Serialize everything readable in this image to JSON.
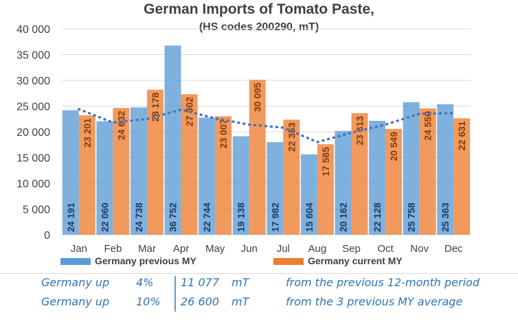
{
  "chart_data": {
    "type": "bar",
    "title": "German Imports of Tomato Paste,",
    "subtitle": "(HS codes 200290, mT)",
    "categories": [
      "Jan",
      "Feb",
      "Mar",
      "Apr",
      "May",
      "Jun",
      "Jul",
      "Aug",
      "Sep",
      "Oct",
      "Nov",
      "Dec"
    ],
    "ylim": [
      0,
      40000
    ],
    "yticks": [
      "0",
      "5 000",
      "10 000",
      "15 000",
      "20 000",
      "25 000",
      "30 000",
      "35 000",
      "40 000"
    ],
    "ytick_values": [
      0,
      5000,
      10000,
      15000,
      20000,
      25000,
      30000,
      35000,
      40000
    ],
    "grid": true,
    "legend_position": "bottom",
    "series": [
      {
        "name": "Germany previous MY",
        "color": "#5b9bd5",
        "values": [
          24191,
          22060,
          24738,
          36752,
          22744,
          19138,
          17982,
          15604,
          20162,
          22128,
          25758,
          25363
        ],
        "labels": [
          "24 191",
          "22 060",
          "24 738",
          "36 752",
          "22 744",
          "19 138",
          "17 982",
          "15 604",
          "20 162",
          "22 128",
          "25 758",
          "25 363"
        ]
      },
      {
        "name": "Germany current MY",
        "color": "#ed7d31",
        "values": [
          23201,
          24632,
          28178,
          27302,
          23007,
          30095,
          22353,
          17585,
          23613,
          20549,
          24550,
          22631
        ],
        "labels": [
          "23 201",
          "24 632",
          "28 178",
          "27 302",
          "23 007",
          "30 095",
          "22 353",
          "17 585",
          "23 613",
          "20 549",
          "24 550",
          "22 631"
        ]
      }
    ],
    "trendline": {
      "color": "#4472c4",
      "style": "dotted",
      "values": [
        24400,
        21800,
        22500,
        24300,
        22600,
        21400,
        20800,
        18000,
        19800,
        21400,
        23500,
        23600
      ]
    }
  },
  "footer": {
    "rows": [
      {
        "label": "Germany up",
        "pct": "4%",
        "amount": "11 077",
        "unit": "mT",
        "desc": "from the previous 12-month period"
      },
      {
        "label": "Germany up",
        "pct": "10%",
        "amount": "26 600",
        "unit": "mT",
        "desc": "from the 3 previous MY average"
      }
    ]
  }
}
